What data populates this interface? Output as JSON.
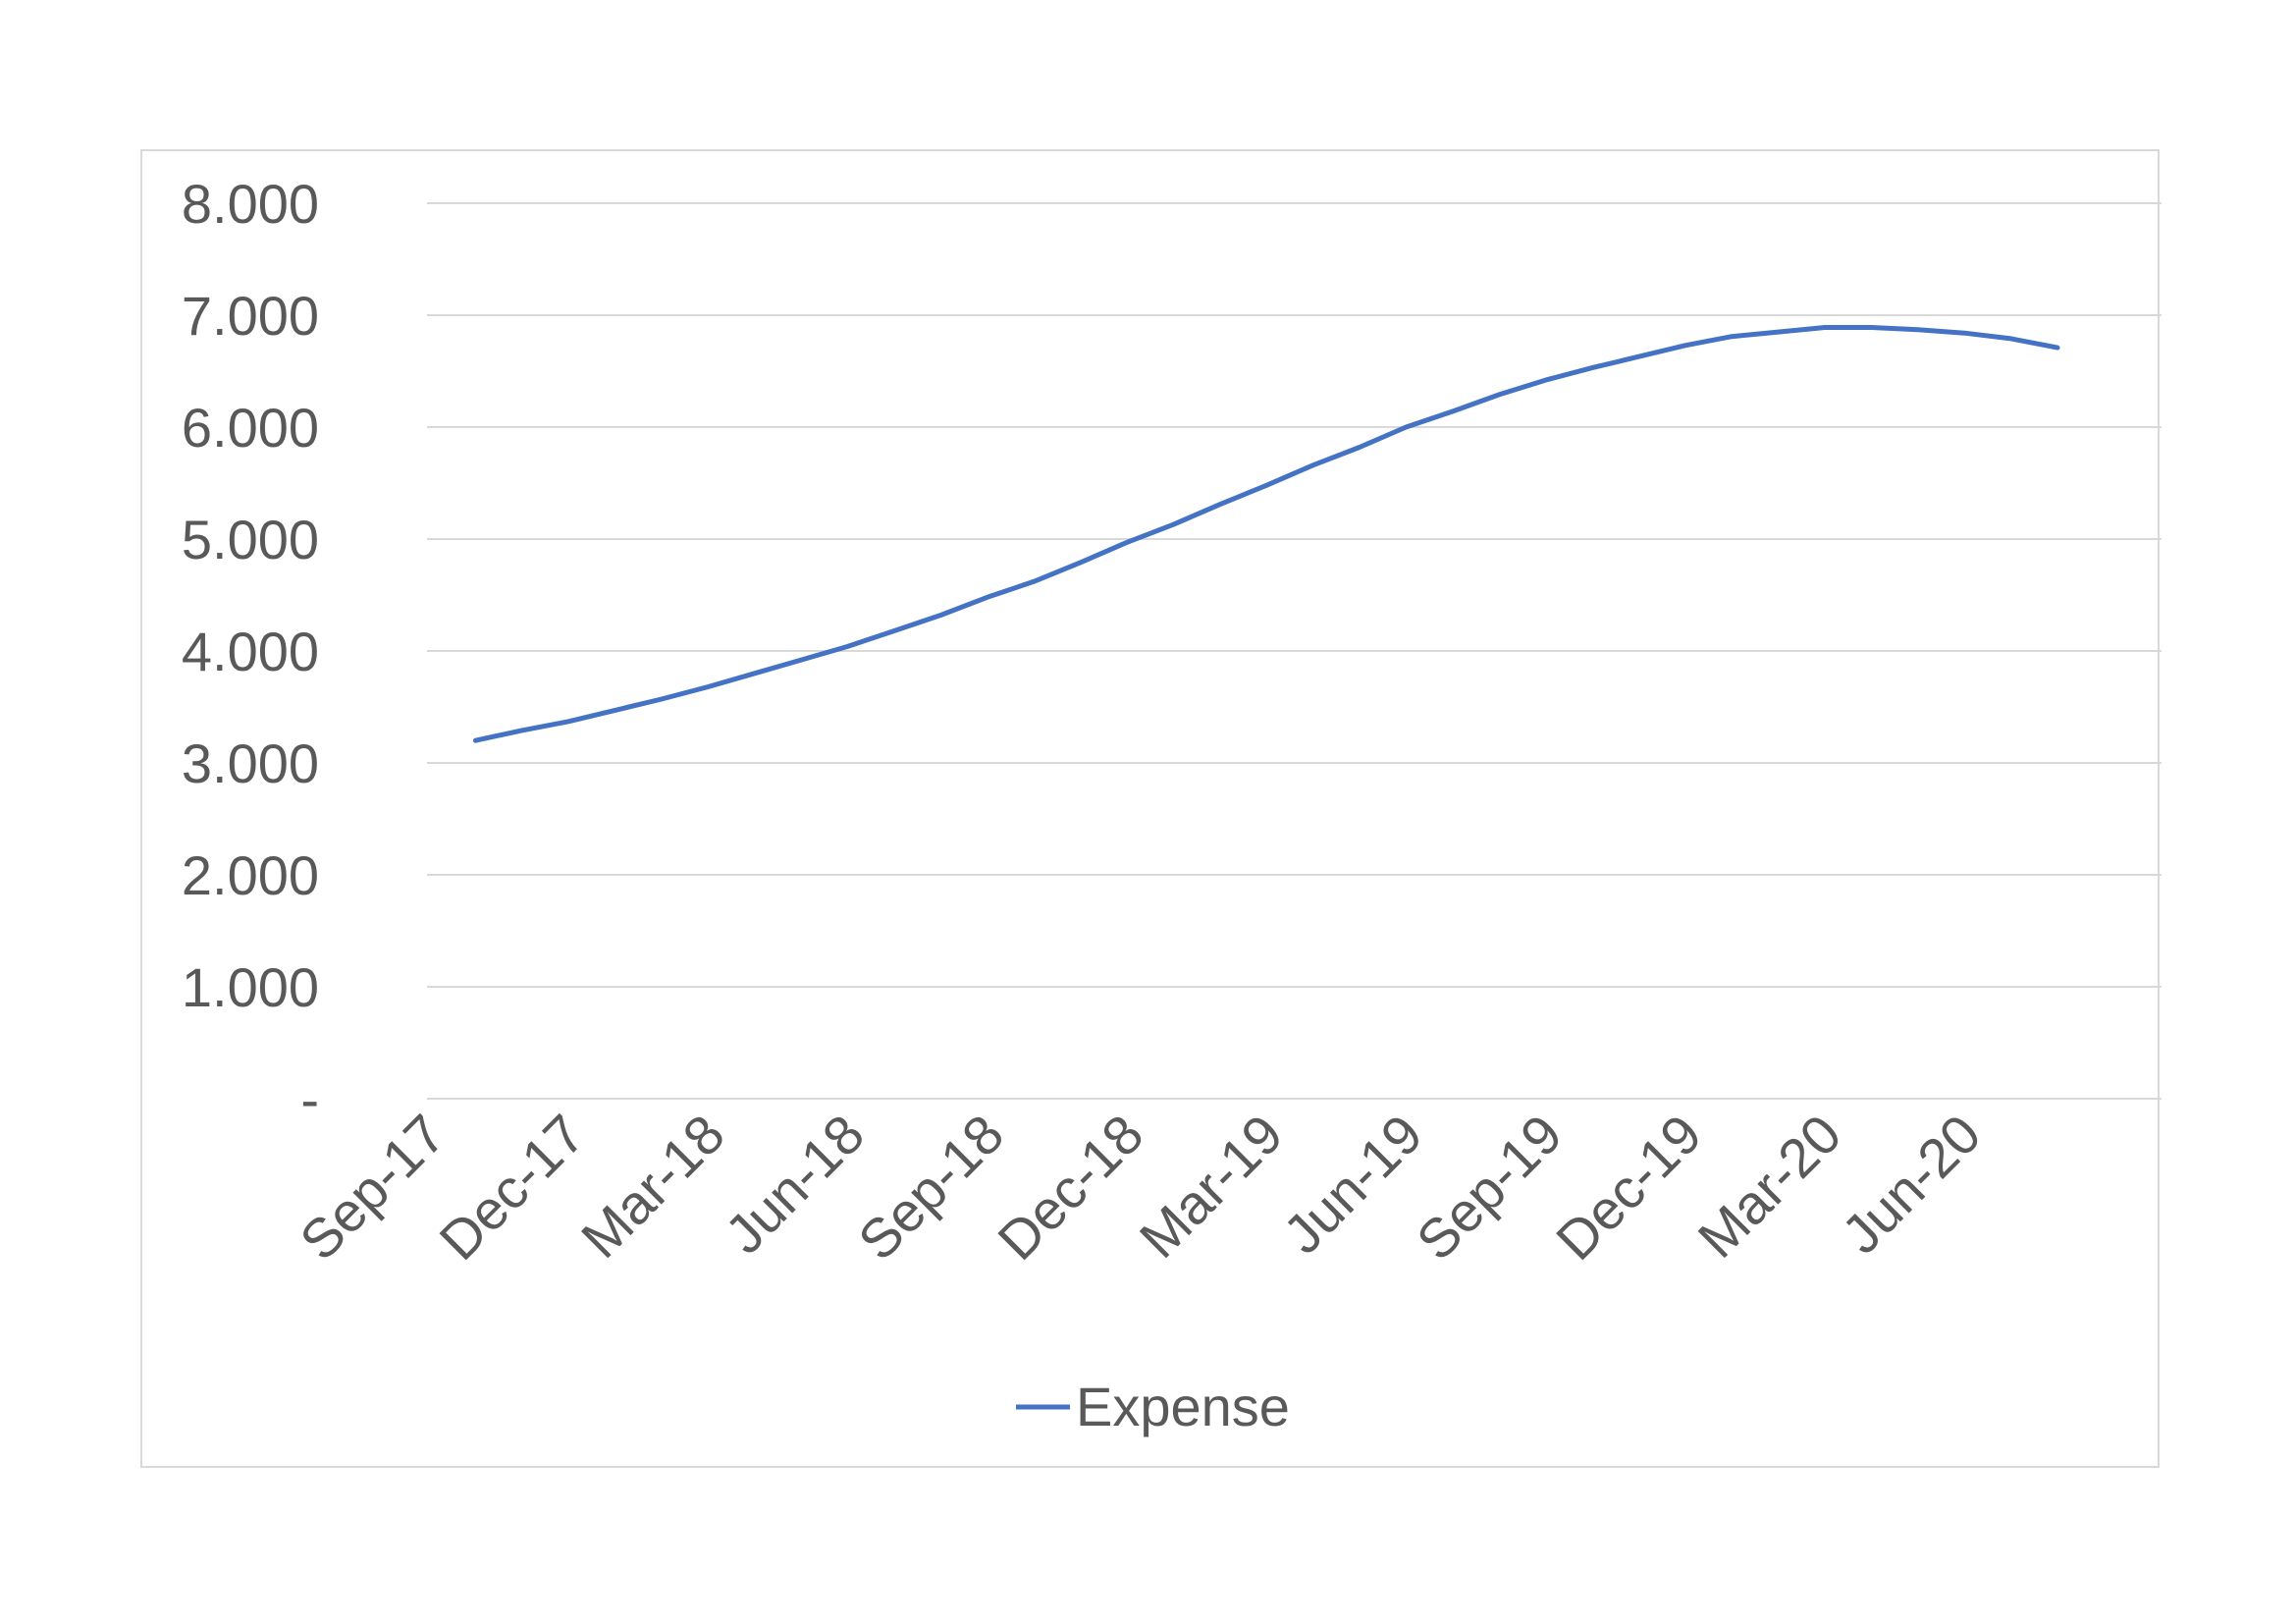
{
  "chart_data": {
    "type": "line",
    "title": "",
    "xlabel": "",
    "ylabel": "",
    "ylim": [
      0,
      8000
    ],
    "y_ticks": [
      "-",
      "1.000",
      "2.000",
      "3.000",
      "4.000",
      "5.000",
      "6.000",
      "7.000",
      "8.000"
    ],
    "y_tick_values": [
      0,
      1000,
      2000,
      3000,
      4000,
      5000,
      6000,
      7000,
      8000
    ],
    "x_tick_labels": [
      "Sep-17",
      "Dec-17",
      "Mar-18",
      "Jun-18",
      "Sep-18",
      "Dec-18",
      "Mar-19",
      "Jun-19",
      "Sep-19",
      "Dec-19",
      "Mar-20",
      "Jun-20"
    ],
    "grid": "horizontal",
    "legend_position": "bottom",
    "series": [
      {
        "name": "Expense",
        "color": "#4472c4",
        "x": [
          "Oct-17",
          "Nov-17",
          "Dec-17",
          "Jan-18",
          "Feb-18",
          "Mar-18",
          "Apr-18",
          "May-18",
          "Jun-18",
          "Jul-18",
          "Aug-18",
          "Sep-18",
          "Oct-18",
          "Nov-18",
          "Dec-18",
          "Jan-19",
          "Feb-19",
          "Mar-19",
          "Apr-19",
          "May-19",
          "Jun-19",
          "Jul-19",
          "Aug-19",
          "Sep-19",
          "Oct-19",
          "Nov-19",
          "Dec-19",
          "Jan-20",
          "Feb-20",
          "Mar-20",
          "Apr-20",
          "May-20",
          "Jun-20",
          "Jul-20",
          "Aug-20"
        ],
        "values": [
          3200,
          3290,
          3370,
          3470,
          3570,
          3680,
          3800,
          3920,
          4040,
          4180,
          4320,
          4480,
          4620,
          4790,
          4970,
          5130,
          5310,
          5480,
          5660,
          5820,
          6000,
          6140,
          6290,
          6420,
          6530,
          6630,
          6730,
          6810,
          6850,
          6890,
          6890,
          6870,
          6840,
          6790,
          6710
        ]
      }
    ]
  }
}
